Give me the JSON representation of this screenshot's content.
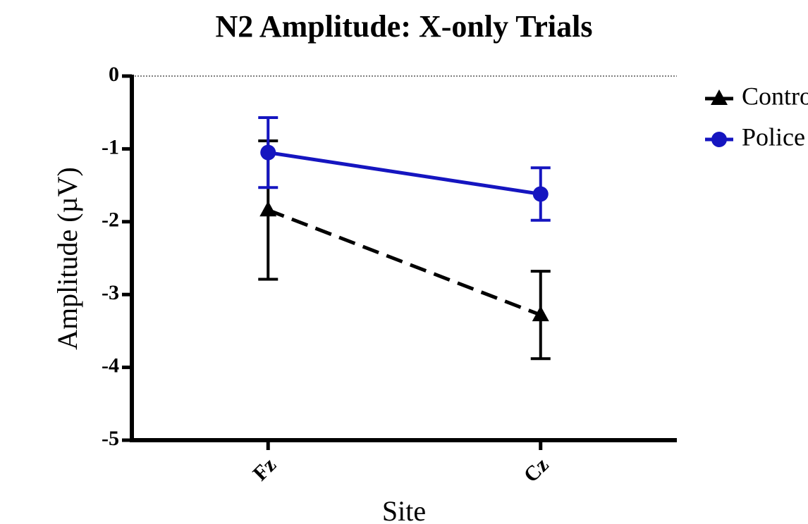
{
  "chart_data": {
    "type": "line",
    "title": "N2 Amplitude: X-only Trials",
    "xlabel": "Site",
    "ylabel": "Amplitude (µV)",
    "categories": [
      "Fz",
      "Cz"
    ],
    "series": [
      {
        "name": "Control",
        "color": "#000000",
        "marker": "triangle",
        "dash": true,
        "values": [
          -1.84,
          -3.28
        ],
        "errors": [
          0.95,
          0.6
        ]
      },
      {
        "name": "Police",
        "color": "#1515c0",
        "marker": "circle",
        "dash": false,
        "values": [
          -1.05,
          -1.62
        ],
        "errors": [
          0.48,
          0.36
        ]
      }
    ],
    "ylim": [
      -5,
      0
    ],
    "yticks": [
      0,
      -1,
      -2,
      -3,
      -4,
      -5
    ],
    "legend": "right"
  }
}
